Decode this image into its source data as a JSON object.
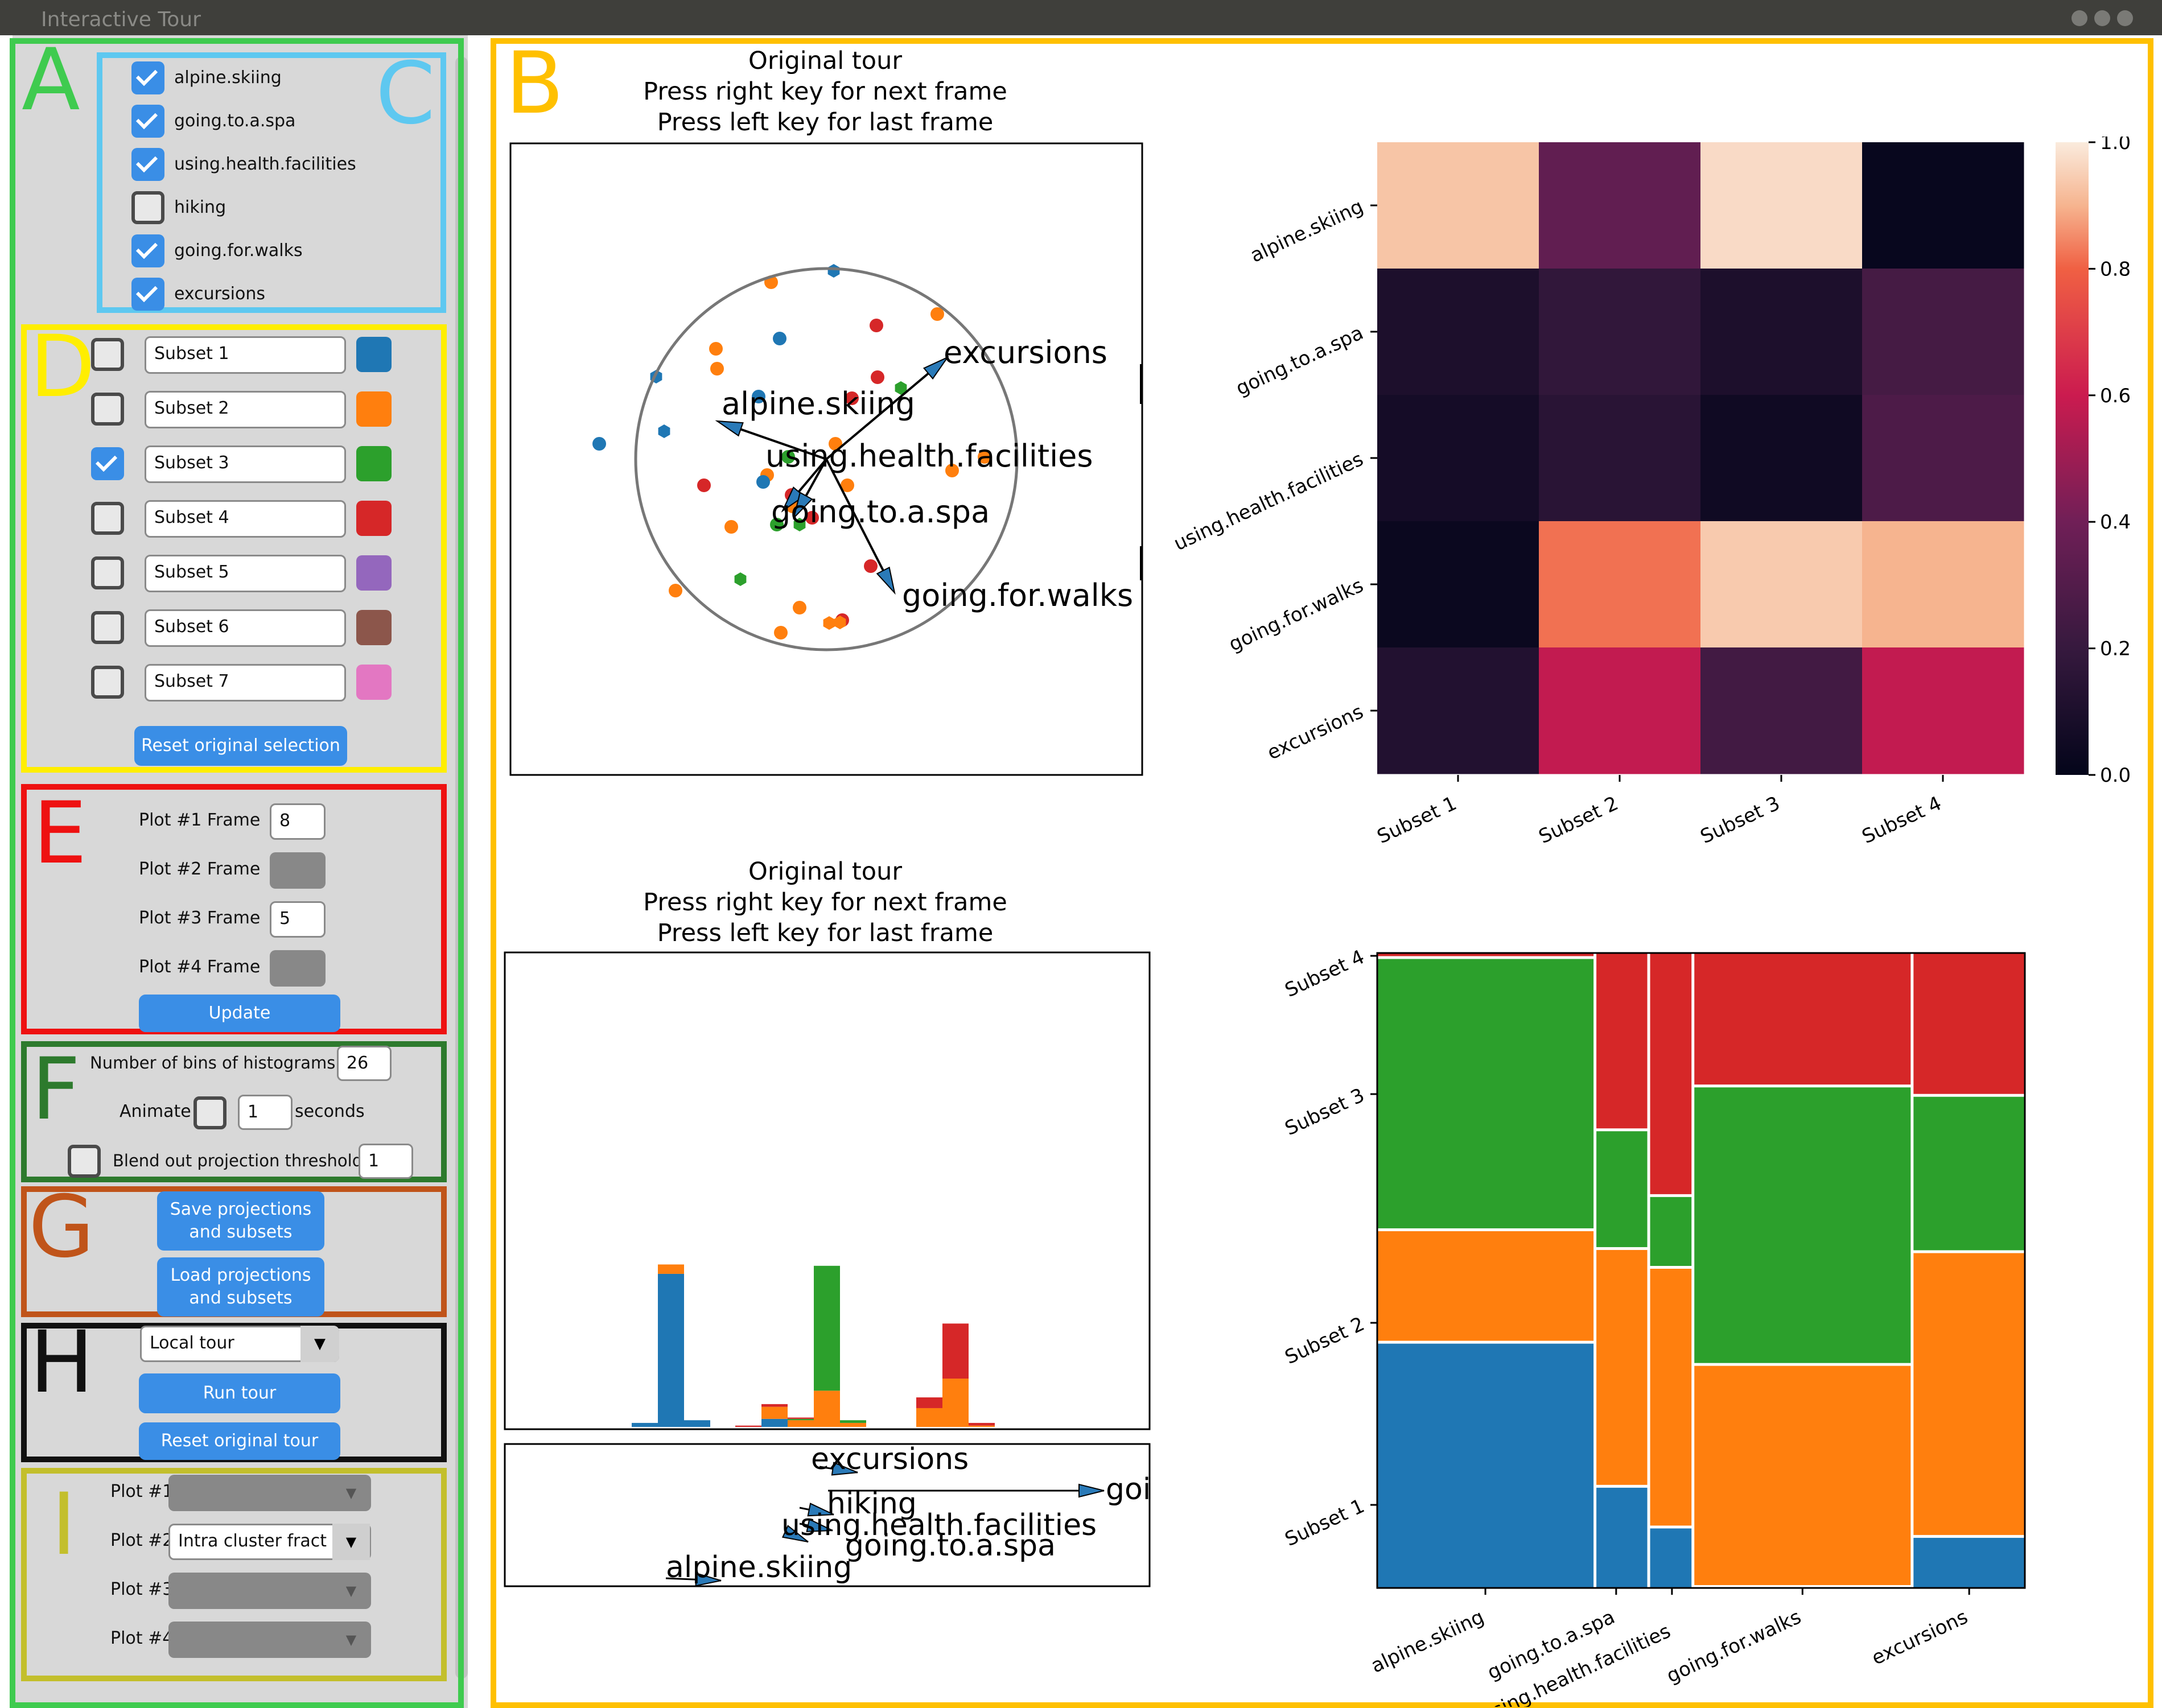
{
  "window": {
    "title": "Interactive Tour"
  },
  "panel_letters": {
    "A": "A",
    "B": "B",
    "C": "C",
    "D": "D",
    "E": "E",
    "F": "F",
    "G": "G",
    "H": "H",
    "I": "I"
  },
  "features": [
    {
      "label": "alpine.skiing",
      "checked": true
    },
    {
      "label": "going.to.a.spa",
      "checked": true
    },
    {
      "label": "using.health.facilities",
      "checked": true
    },
    {
      "label": "hiking",
      "checked": false
    },
    {
      "label": "going.for.walks",
      "checked": true
    },
    {
      "label": "excursions",
      "checked": true
    }
  ],
  "subsets": [
    {
      "name": "Subset 1",
      "checked": false,
      "color": "#1f77b4"
    },
    {
      "name": "Subset 2",
      "checked": false,
      "color": "#ff7f0e"
    },
    {
      "name": "Subset 3",
      "checked": true,
      "color": "#2ca02c"
    },
    {
      "name": "Subset 4",
      "checked": false,
      "color": "#d62728"
    },
    {
      "name": "Subset 5",
      "checked": false,
      "color": "#9467bd"
    },
    {
      "name": "Subset 6",
      "checked": false,
      "color": "#8c564b"
    },
    {
      "name": "Subset 7",
      "checked": false,
      "color": "#e377c2"
    }
  ],
  "reset_selection_label": "Reset original selection",
  "frames": [
    {
      "label": "Plot #1 Frame",
      "value": "8",
      "enabled": true
    },
    {
      "label": "Plot #2 Frame",
      "value": "",
      "enabled": false
    },
    {
      "label": "Plot #3 Frame",
      "value": "5",
      "enabled": true
    },
    {
      "label": "Plot #4 Frame",
      "value": "",
      "enabled": false
    }
  ],
  "update_label": "Update",
  "bins": {
    "label": "Number of bins of histograms",
    "value": "26"
  },
  "animate": {
    "label": "Animate",
    "value": "1",
    "unit": "seconds",
    "checked": false
  },
  "blend": {
    "label": "Blend out projection threshold",
    "value": "1",
    "checked": false
  },
  "save_label": "Save projections and subsets",
  "load_label": "Load projections and subsets",
  "tour_select": {
    "value": "Local tour"
  },
  "run_tour_label": "Run tour",
  "reset_tour_label": "Reset original tour",
  "plot_selects": [
    {
      "label": "Plot #1",
      "value": "",
      "enabled": false
    },
    {
      "label": "Plot #2",
      "value": "Intra cluster fract",
      "enabled": true
    },
    {
      "label": "Plot #3",
      "value": "",
      "enabled": false
    },
    {
      "label": "Plot #4",
      "value": "",
      "enabled": false
    }
  ],
  "scatter_title": [
    "Original tour",
    "Press right key for next frame",
    "Press left key for last frame"
  ],
  "hist_title": [
    "Original tour",
    "Press right key for next frame",
    "Press left key for last frame"
  ],
  "colors": {
    "s1": "#1f77b4",
    "s2": "#ff7f0e",
    "s3": "#2ca02c",
    "s4": "#d62728"
  },
  "chart_data": [
    {
      "type": "scatter",
      "title": "Original tour\nPress right key for next frame\nPress left key for last frame",
      "axis_labels": [
        "excursions",
        "alpine.skiing",
        "using.health.facilities",
        "going.to.a.spa",
        "going.for.walks"
      ],
      "note": "2D projection with unit circle and feature axes"
    },
    {
      "type": "heatmap",
      "rows": [
        "alpine.skiing",
        "going.to.a.spa",
        "using.health.facilities",
        "going.for.walks",
        "excursions"
      ],
      "columns": [
        "Subset 1",
        "Subset 2",
        "Subset 3",
        "Subset 4"
      ],
      "values": [
        [
          0.93,
          0.35,
          0.97,
          0.02
        ],
        [
          0.1,
          0.18,
          0.1,
          0.25
        ],
        [
          0.07,
          0.15,
          0.05,
          0.28
        ],
        [
          0.03,
          0.82,
          0.94,
          0.9
        ],
        [
          0.12,
          0.58,
          0.24,
          0.58
        ]
      ],
      "colorbar_ticks": [
        "0.0",
        "0.2",
        "0.4",
        "0.6",
        "0.8",
        "1.0"
      ],
      "vmin": 0,
      "vmax": 1
    },
    {
      "type": "bar",
      "stacked": true,
      "title": "Original tour\nPress right key for next frame\nPress left key for last frame",
      "bins": [
        {
          "s1": 3,
          "s2": 0,
          "s3": 0,
          "s4": 0
        },
        {
          "s1": 114,
          "s2": 7,
          "s3": 0,
          "s4": 0
        },
        {
          "s1": 5,
          "s2": 0,
          "s3": 0,
          "s4": 0
        },
        {
          "s1": 0,
          "s2": 0,
          "s3": 0,
          "s4": 1
        },
        {
          "s1": 6,
          "s2": 9,
          "s3": 0,
          "s4": 2
        },
        {
          "s1": 0,
          "s2": 5,
          "s3": 1,
          "s4": 1
        },
        {
          "s1": 0,
          "s2": 27,
          "s3": 93,
          "s4": 0
        },
        {
          "s1": 0,
          "s2": 3,
          "s3": 2,
          "s4": 0
        },
        {
          "s1": 0,
          "s2": 14,
          "s3": 0,
          "s4": 8
        },
        {
          "s1": 0,
          "s2": 36,
          "s3": 0,
          "s4": 41
        },
        {
          "s1": 0,
          "s2": 1,
          "s3": 0,
          "s4": 2
        }
      ],
      "axis_labels": [
        "excursions",
        "goi",
        "hiking",
        "using.health.facilities",
        "going.to.a.spa",
        "alpine.skiing"
      ]
    },
    {
      "type": "mosaic",
      "x_categories": [
        "alpine.skiing",
        "going.to.a.spa",
        "using.health.facilities",
        "going.for.walks",
        "excursions"
      ],
      "y_categories": [
        "Subset 1",
        "Subset 2",
        "Subset 3",
        "Subset 4"
      ],
      "column_widths": [
        0.34,
        0.08,
        0.065,
        0.34,
        0.175
      ],
      "column_shares": [
        [
          0.39,
          0.175,
          0.43,
          0.005
        ],
        [
          0.16,
          0.375,
          0.185,
          0.28
        ],
        [
          0.095,
          0.41,
          0.11,
          0.385
        ],
        [
          0.0,
          0.35,
          0.44,
          0.21
        ],
        [
          0.08,
          0.45,
          0.245,
          0.225
        ]
      ]
    }
  ]
}
